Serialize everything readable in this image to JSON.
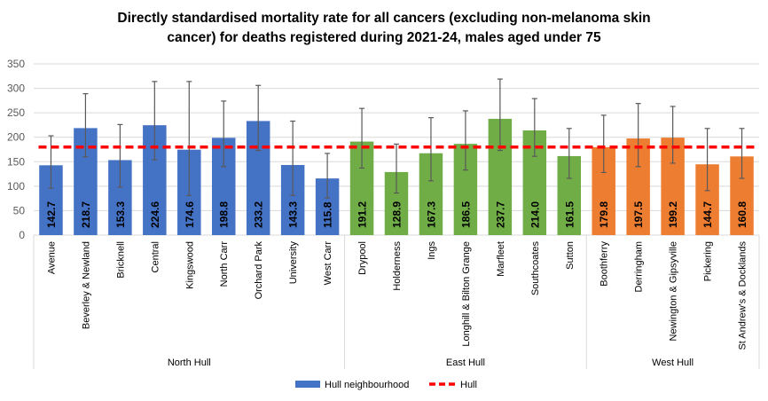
{
  "chart_data": {
    "type": "bar",
    "title_line1": "Directly standardised  mortality rate for all cancers (excluding non-melanoma skin",
    "title_line2": "cancer)  for deaths registered during 2021-24, males aged under 75",
    "xlabel": "",
    "ylabel": "",
    "ylim": [
      0,
      350
    ],
    "yticks": [
      0,
      50,
      100,
      150,
      200,
      250,
      300,
      350
    ],
    "grid": true,
    "legend_position": "bottom",
    "groups": [
      {
        "name": "North Hull",
        "color": "#4472C4",
        "categories": [
          "Avenue",
          "Beverley & Newland",
          "Bricknell",
          "Central",
          "Kingswood",
          "North Carr",
          "Orchard Park",
          "University",
          "West Carr"
        ],
        "values": [
          142.7,
          218.7,
          153.3,
          224.6,
          174.6,
          198.8,
          233.2,
          143.3,
          115.8
        ],
        "lower": [
          96,
          160,
          98,
          154,
          81,
          140,
          173,
          81,
          76
        ],
        "upper": [
          203,
          289,
          226,
          314,
          314,
          274,
          306,
          233,
          167
        ]
      },
      {
        "name": "East Hull",
        "color": "#70AD47",
        "categories": [
          "Drypool",
          "Holderness",
          "Ings",
          "Longhill & Bilton Grange",
          "Marfleet",
          "Southcoates",
          "Sutton"
        ],
        "values": [
          191.2,
          128.9,
          167.3,
          186.5,
          237.7,
          214.0,
          161.5
        ],
        "lower": [
          137,
          86,
          111,
          133,
          173,
          161,
          116
        ],
        "upper": [
          259,
          186,
          240,
          254,
          319,
          279,
          218
        ]
      },
      {
        "name": "West Hull",
        "color": "#ED7D31",
        "categories": [
          "Boothferry",
          "Derringham",
          "Newington & Gipsyville",
          "Pickering",
          "St Andrew's & Docklands"
        ],
        "values": [
          179.8,
          197.5,
          199.2,
          144.7,
          160.8
        ],
        "lower": [
          128,
          140,
          147,
          91,
          116
        ],
        "upper": [
          245,
          269,
          263,
          218,
          218
        ]
      }
    ],
    "reference_line": {
      "name": "Hull",
      "value": 180,
      "color": "#FF0000"
    },
    "legend": [
      {
        "name": "Hull neighbourhood",
        "color": "#4472C4",
        "kind": "bar"
      },
      {
        "name": "Hull",
        "color": "#FF0000",
        "kind": "dashed-line"
      }
    ]
  }
}
